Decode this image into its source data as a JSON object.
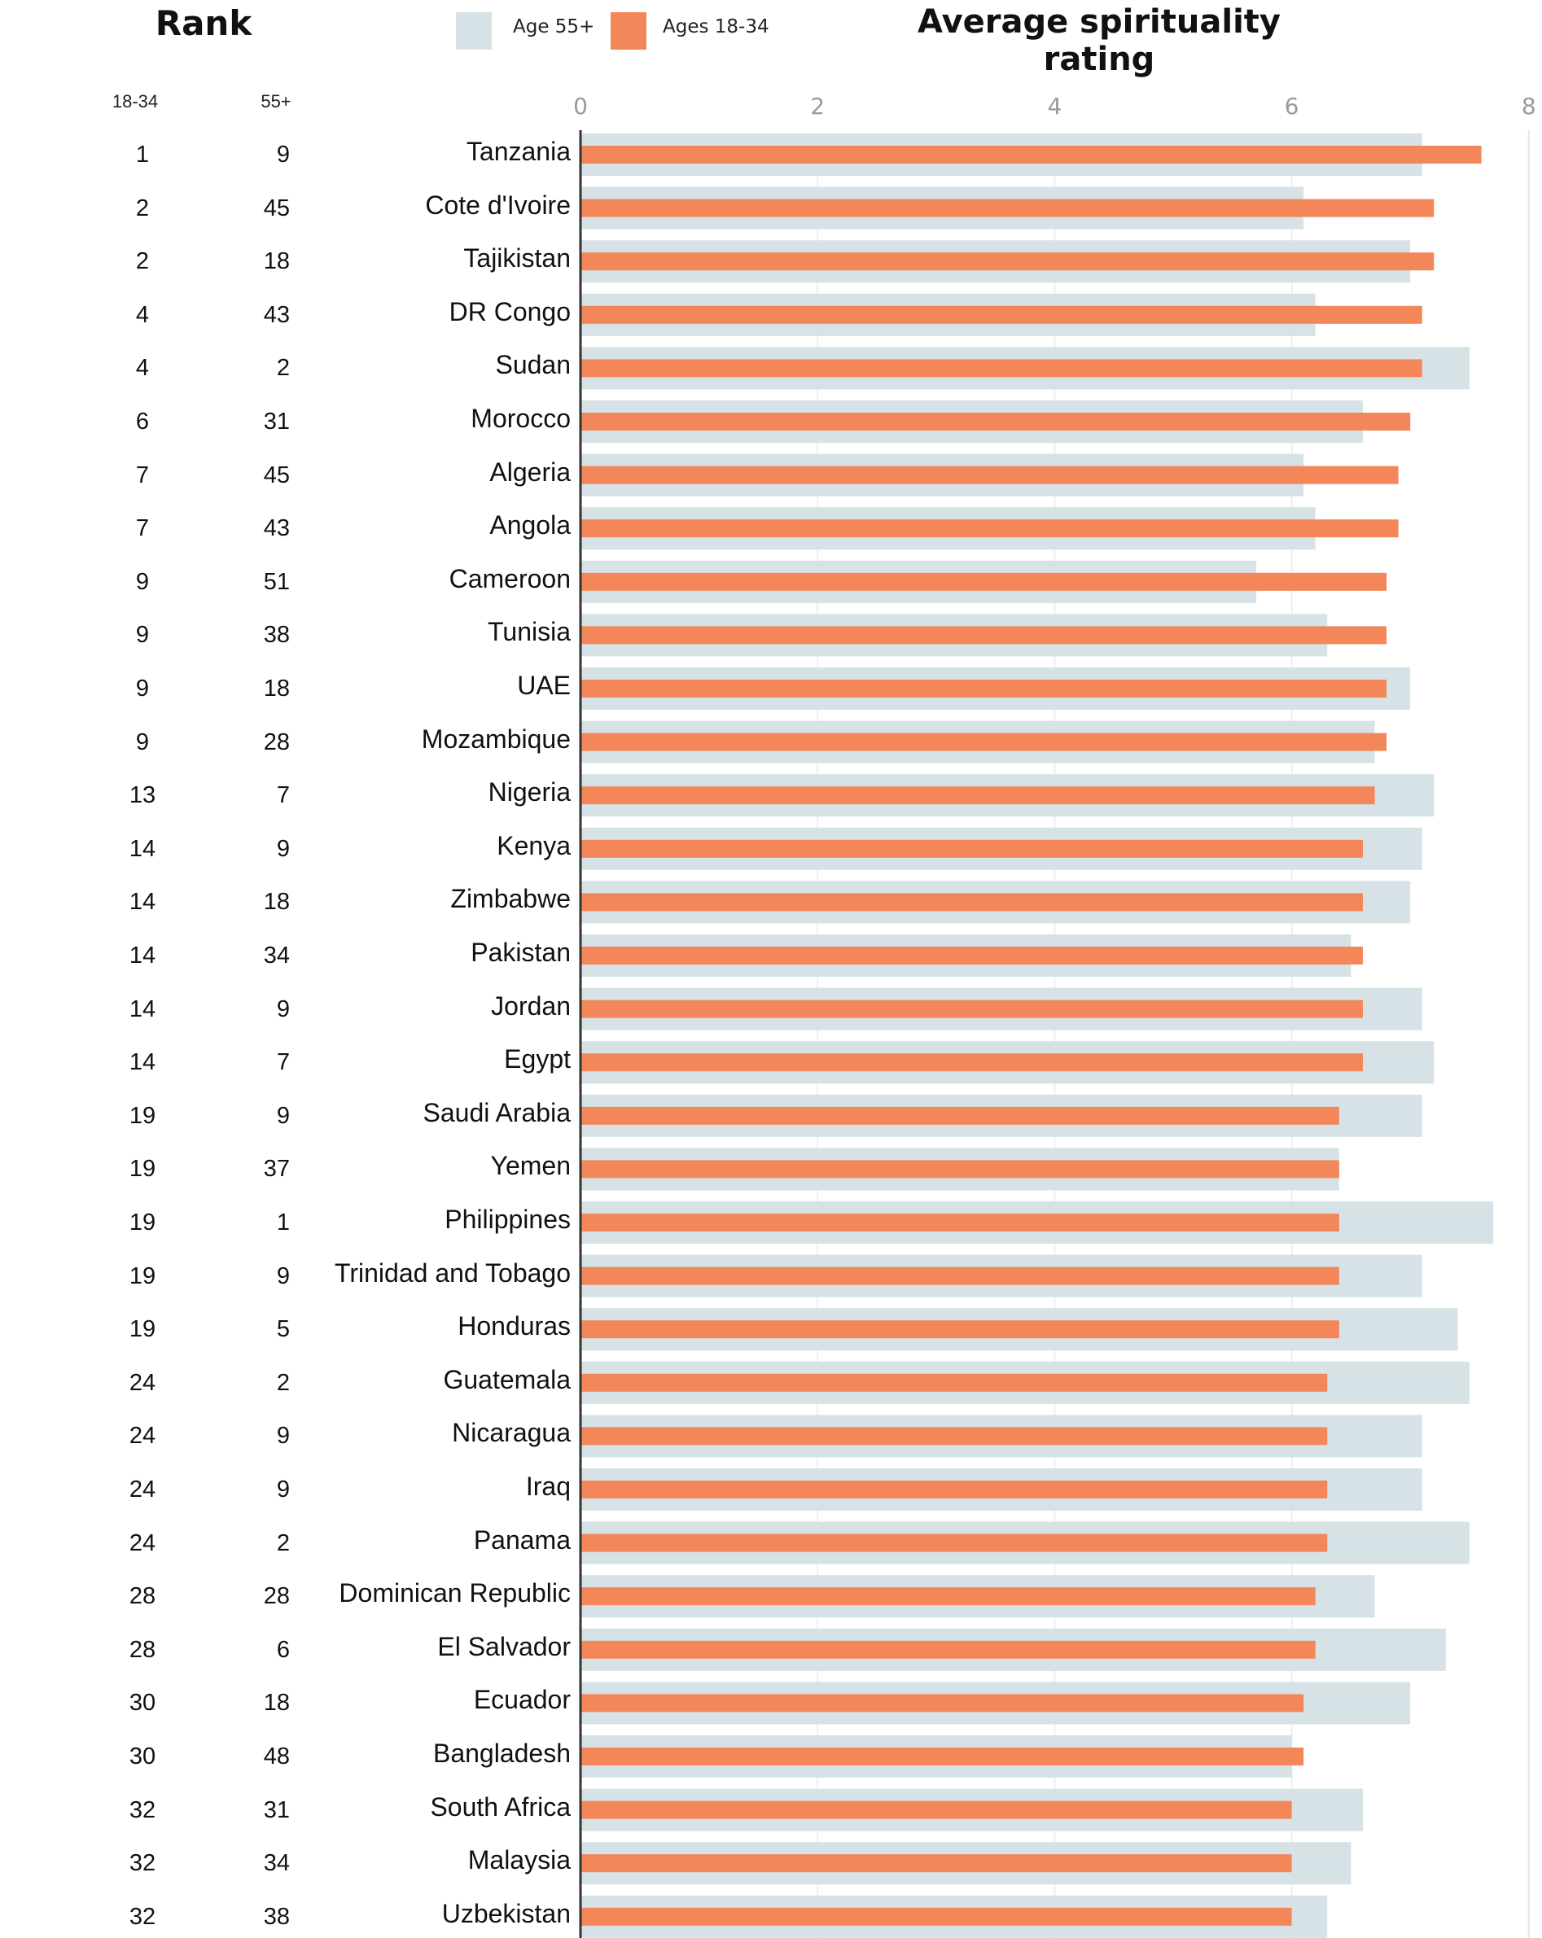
{
  "header": {
    "rank_title": "Rank",
    "chart_title": "Average spirituality rating",
    "rank_columns": [
      "18-34",
      "55+"
    ]
  },
  "legend": [
    {
      "label": "Age 55+",
      "color": "#d6e2e6"
    },
    {
      "label": "Ages 18-34",
      "color": "#f4875a"
    }
  ],
  "chart_data": {
    "type": "bar",
    "orientation": "horizontal",
    "title": "Average spirituality rating",
    "xlabel": "",
    "ylabel": "",
    "xlim": [
      0,
      8
    ],
    "xticks": [
      "0",
      "2",
      "4",
      "6",
      "8"
    ],
    "grid": true,
    "legend_position": "top",
    "categories": [
      "Tanzania",
      "Cote d'Ivoire",
      "Tajikistan",
      "DR Congo",
      "Sudan",
      "Morocco",
      "Algeria",
      "Angola",
      "Cameroon",
      "Tunisia",
      "UAE",
      "Mozambique",
      "Nigeria",
      "Kenya",
      "Zimbabwe",
      "Pakistan",
      "Jordan",
      "Egypt",
      "Saudi Arabia",
      "Yemen",
      "Philippines",
      "Trinidad and Tobago",
      "Honduras",
      "Guatemala",
      "Nicaragua",
      "Iraq",
      "Panama",
      "Dominican Republic",
      "El Salvador",
      "Ecuador",
      "Bangladesh",
      "South Africa",
      "Malaysia",
      "Uzbekistan"
    ],
    "series": [
      {
        "name": "Age 55+",
        "color": "#d6e2e6",
        "values": [
          7.1,
          6.1,
          7.0,
          6.2,
          7.5,
          6.6,
          6.1,
          6.2,
          5.7,
          6.3,
          7.0,
          6.7,
          7.2,
          7.1,
          7.0,
          6.5,
          7.1,
          7.2,
          7.1,
          6.4,
          7.7,
          7.1,
          7.4,
          7.5,
          7.1,
          7.1,
          7.5,
          6.7,
          7.3,
          7.0,
          6.0,
          6.6,
          6.5,
          6.3
        ]
      },
      {
        "name": "Ages 18-34",
        "color": "#f4875a",
        "values": [
          7.6,
          7.2,
          7.2,
          7.1,
          7.1,
          7.0,
          6.9,
          6.9,
          6.8,
          6.8,
          6.8,
          6.8,
          6.7,
          6.6,
          6.6,
          6.6,
          6.6,
          6.6,
          6.4,
          6.4,
          6.4,
          6.4,
          6.4,
          6.3,
          6.3,
          6.3,
          6.3,
          6.2,
          6.2,
          6.1,
          6.1,
          6.0,
          6.0,
          6.0
        ]
      }
    ],
    "ranks": {
      "18-34": [
        "1",
        "2",
        "2",
        "4",
        "4",
        "6",
        "7",
        "7",
        "9",
        "9",
        "9",
        "9",
        "13",
        "14",
        "14",
        "14",
        "14",
        "14",
        "19",
        "19",
        "19",
        "19",
        "19",
        "24",
        "24",
        "24",
        "24",
        "28",
        "28",
        "30",
        "30",
        "32",
        "32",
        "32"
      ],
      "55+": [
        "9",
        "45",
        "18",
        "43",
        "2",
        "31",
        "45",
        "43",
        "51",
        "38",
        "18",
        "28",
        "7",
        "9",
        "18",
        "34",
        "9",
        "7",
        "9",
        "37",
        "1",
        "9",
        "5",
        "2",
        "9",
        "9",
        "2",
        "28",
        "6",
        "18",
        "48",
        "31",
        "34",
        "38"
      ]
    }
  }
}
